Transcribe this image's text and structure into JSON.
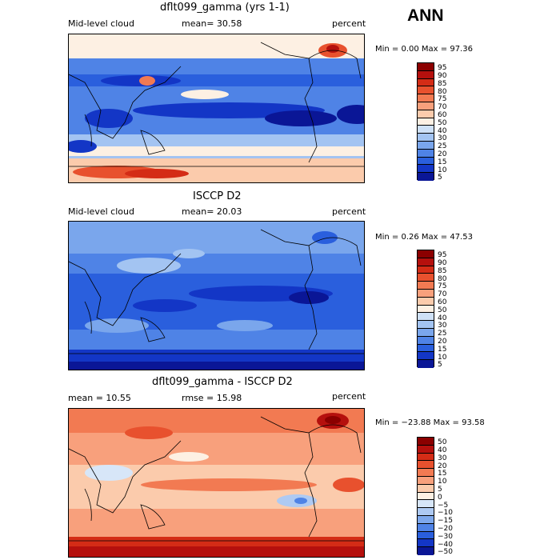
{
  "season": "ANN",
  "panels": [
    {
      "title": "dflt099_gamma (yrs 1-1)",
      "left_label": "Mid-level cloud",
      "center_label": "mean=  30.58",
      "right_label": "percent",
      "stats": "Min =    0.00 Max =  97.36",
      "legend": [
        "95",
        "90",
        "85",
        "80",
        "75",
        "70",
        "60",
        "50",
        "40",
        "30",
        "25",
        "20",
        "15",
        "10",
        "5"
      ],
      "colors": [
        "#8b0000",
        "#b5100d",
        "#d42c16",
        "#e8512e",
        "#f27a52",
        "#f8a07c",
        "#fbcbac",
        "#fdf0e3",
        "#cfe1f7",
        "#a3c4f2",
        "#7aa6ec",
        "#4f83e6",
        "#2a5fdd",
        "#1336c6",
        "#0a1696"
      ]
    },
    {
      "title": "ISCCP D2",
      "left_label": "Mid-level cloud",
      "center_label": "mean=  20.03",
      "right_label": "percent",
      "stats": "Min =    0.26 Max =  47.53",
      "legend": [
        "95",
        "90",
        "85",
        "80",
        "75",
        "70",
        "60",
        "50",
        "40",
        "30",
        "25",
        "20",
        "15",
        "10",
        "5"
      ],
      "colors": [
        "#8b0000",
        "#b5100d",
        "#d42c16",
        "#e8512e",
        "#f27a52",
        "#f8a07c",
        "#fbcbac",
        "#fdf0e3",
        "#cfe1f7",
        "#a3c4f2",
        "#7aa6ec",
        "#4f83e6",
        "#2a5fdd",
        "#1336c6",
        "#0a1696"
      ]
    },
    {
      "title": "dflt099_gamma - ISCCP D2",
      "left_label": "mean =   10.55",
      "center_label": "rmse =   15.98",
      "right_label": "percent",
      "stats": "Min = −23.88 Max =  93.58",
      "legend": [
        "50",
        "40",
        "30",
        "20",
        "15",
        "10",
        "5",
        "0",
        "−5",
        "−10",
        "−15",
        "−20",
        "−30",
        "−40",
        "−50"
      ],
      "colors": [
        "#8b0000",
        "#b5100d",
        "#d42c16",
        "#e8512e",
        "#f27a52",
        "#f8a07c",
        "#fbcbac",
        "#fdf0e3",
        "#d7e6f8",
        "#aecaf3",
        "#7ea8ec",
        "#4f83e6",
        "#2a5fdd",
        "#1336c6",
        "#0a1696"
      ]
    }
  ]
}
